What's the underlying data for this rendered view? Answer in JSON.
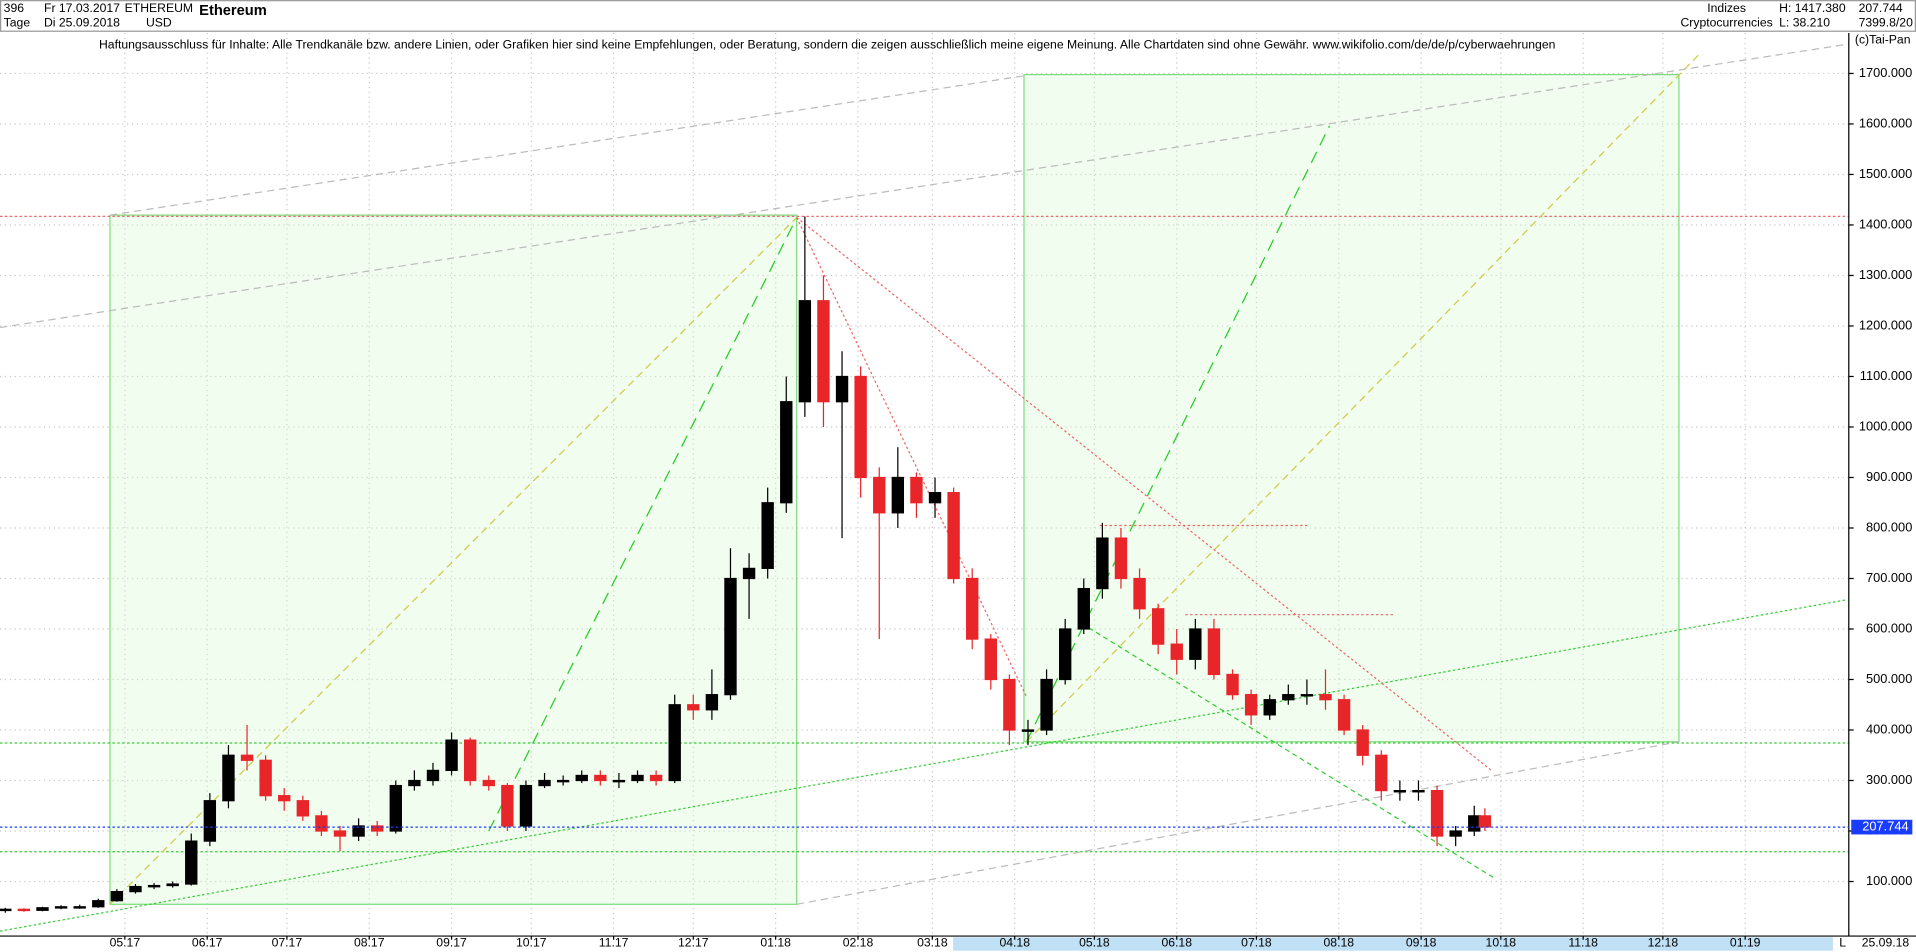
{
  "header": {
    "bars": "396",
    "start_date": "Fr 17.03.2017",
    "period": "Tage",
    "end_date": "Di 25.09.2018",
    "symbol": "ETHEREUM",
    "currency": "USD",
    "group": "Indizes",
    "sector": "Cryptocurrencies",
    "high": "H: 1417.380",
    "low": "L: 38.210",
    "last": "207.744",
    "volume": "7399.8/20",
    "copyright": "(c)Tai-Pan",
    "corner": "L",
    "axis_date": "25.09.18"
  },
  "chart_data": {
    "type": "candlestick",
    "title": "Ethereum",
    "annotations": [
      "Haftungsausschluss für Inhalte: Alle Trendkanäle bzw. andere Linien, oder Grafiken hier sind keine Empfehlungen, oder Beratung, sondern die zeigen ausschließlich meine eigene Meinung. Alle Chartdaten sind ohne Gewähr.  www.wikifolio.com/de/de/p/cyberwaehrungen"
    ],
    "x": [
      0,
      7,
      14,
      21,
      28,
      35,
      42,
      49,
      56,
      63,
      70,
      77,
      84,
      91,
      98,
      105,
      112,
      119,
      126,
      133,
      140,
      147,
      154,
      161,
      168,
      175,
      182,
      189,
      196,
      203,
      210,
      217,
      224,
      231,
      238,
      245,
      252,
      259,
      266,
      273,
      280,
      287,
      294,
      301,
      308,
      315,
      322,
      329,
      336,
      343,
      350,
      357,
      364,
      371,
      378,
      385,
      392,
      399,
      406,
      413,
      420,
      427,
      434,
      441,
      448,
      455,
      462,
      469,
      476,
      483,
      490,
      497,
      504,
      511,
      518,
      525,
      532,
      539,
      546,
      553,
      557
    ],
    "open": [
      44,
      45,
      43,
      48,
      50,
      50,
      62,
      80,
      90,
      92,
      95,
      180,
      260,
      350,
      340,
      270,
      260,
      230,
      200,
      190,
      210,
      200,
      290,
      300,
      320,
      380,
      300,
      290,
      210,
      290,
      300,
      300,
      310,
      300,
      300,
      310,
      300,
      450,
      440,
      470,
      700,
      720,
      850,
      1050,
      1250,
      1050,
      1100,
      900,
      830,
      900,
      850,
      870,
      700,
      580,
      500,
      400,
      400,
      500,
      600,
      680,
      780,
      700,
      640,
      570,
      540,
      600,
      510,
      470,
      430,
      460,
      470,
      470,
      460,
      400,
      350,
      280,
      280,
      280,
      190,
      200,
      230
    ],
    "high": [
      48,
      47,
      50,
      53,
      54,
      66,
      85,
      95,
      97,
      100,
      195,
      275,
      370,
      410,
      350,
      285,
      270,
      240,
      210,
      225,
      220,
      300,
      320,
      335,
      395,
      385,
      310,
      295,
      300,
      315,
      310,
      320,
      320,
      315,
      320,
      320,
      470,
      470,
      520,
      760,
      750,
      880,
      1100,
      1417,
      1300,
      1150,
      1120,
      920,
      960,
      910,
      900,
      880,
      720,
      590,
      510,
      420,
      520,
      620,
      700,
      810,
      800,
      720,
      650,
      600,
      620,
      620,
      520,
      480,
      470,
      490,
      500,
      520,
      470,
      410,
      360,
      300,
      300,
      290,
      210,
      250,
      245
    ],
    "low": [
      38.21,
      40,
      41,
      45,
      46,
      48,
      60,
      76,
      85,
      88,
      92,
      170,
      245,
      320,
      260,
      240,
      220,
      190,
      160,
      180,
      190,
      195,
      280,
      290,
      310,
      290,
      280,
      200,
      200,
      285,
      290,
      295,
      290,
      285,
      295,
      290,
      295,
      420,
      420,
      460,
      620,
      700,
      830,
      1020,
      1000,
      780,
      860,
      580,
      800,
      820,
      820,
      690,
      560,
      480,
      370,
      370,
      390,
      490,
      590,
      660,
      680,
      620,
      550,
      510,
      520,
      500,
      460,
      410,
      420,
      450,
      450,
      440,
      390,
      330,
      260,
      260,
      260,
      170,
      170,
      190,
      200
    ],
    "close": [
      45,
      43,
      48,
      50,
      50,
      62,
      80,
      90,
      92,
      95,
      180,
      260,
      350,
      340,
      270,
      260,
      230,
      200,
      190,
      210,
      200,
      290,
      300,
      320,
      380,
      300,
      290,
      210,
      290,
      300,
      300,
      310,
      300,
      300,
      310,
      300,
      450,
      440,
      470,
      700,
      720,
      850,
      1050,
      1250,
      1050,
      1100,
      900,
      830,
      900,
      850,
      870,
      700,
      580,
      500,
      400,
      400,
      500,
      600,
      680,
      780,
      700,
      640,
      570,
      540,
      600,
      510,
      470,
      430,
      460,
      470,
      470,
      460,
      400,
      350,
      280,
      280,
      280,
      190,
      200,
      230,
      208
    ],
    "up_color": "#000000",
    "down_color": "#e8262a",
    "last_price": {
      "value": 207.744,
      "label": "207.744"
    },
    "xlim": [
      -2,
      694
    ],
    "xticks": [
      {
        "value": 45,
        "label": "05.17"
      },
      {
        "value": 76,
        "label": "06.17"
      },
      {
        "value": 106,
        "label": "07.17"
      },
      {
        "value": 137,
        "label": "08.17"
      },
      {
        "value": 168,
        "label": "09.17"
      },
      {
        "value": 198,
        "label": "10.17"
      },
      {
        "value": 229,
        "label": "11.17"
      },
      {
        "value": 259,
        "label": "12.17"
      },
      {
        "value": 290,
        "label": "01.18"
      },
      {
        "value": 321,
        "label": "02.18"
      },
      {
        "value": 349,
        "label": "03.18"
      },
      {
        "value": 380,
        "label": "04.18"
      },
      {
        "value": 410,
        "label": "05.18"
      },
      {
        "value": 441,
        "label": "06.18"
      },
      {
        "value": 471,
        "label": "07.18"
      },
      {
        "value": 502,
        "label": "08.18"
      },
      {
        "value": 533,
        "label": "09.18"
      },
      {
        "value": 563,
        "label": "10.18"
      },
      {
        "value": 594,
        "label": "11.18"
      },
      {
        "value": 624,
        "label": "12.18"
      },
      {
        "value": 655,
        "label": "01.19"
      }
    ],
    "ylim": [
      -8,
      1780
    ],
    "yticks": [
      {
        "value": 100,
        "label": "100.000"
      },
      {
        "value": 200,
        "label": "200.000"
      },
      {
        "value": 300,
        "label": "300.000"
      },
      {
        "value": 400,
        "label": "400.000"
      },
      {
        "value": 500,
        "label": "500.000"
      },
      {
        "value": 600,
        "label": "600.000"
      },
      {
        "value": 700,
        "label": "700.000"
      },
      {
        "value": 800,
        "label": "800.000"
      },
      {
        "value": 900,
        "label": "900.000"
      },
      {
        "value": 1000,
        "label": "1000.000"
      },
      {
        "value": 1100,
        "label": "1100.000"
      },
      {
        "value": 1200,
        "label": "1200.000"
      },
      {
        "value": 1300,
        "label": "1300.000"
      },
      {
        "value": 1400,
        "label": "1400.000"
      },
      {
        "value": 1500,
        "label": "1500.000"
      },
      {
        "value": 1600,
        "label": "1600.000"
      },
      {
        "value": 1700,
        "label": "1700.000"
      }
    ],
    "grid": true
  }
}
